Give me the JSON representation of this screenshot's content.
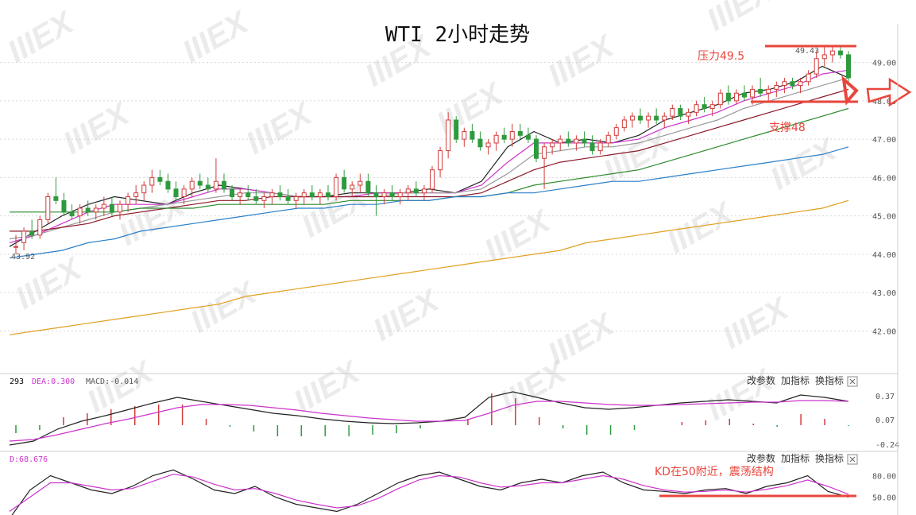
{
  "title": "WTI 2小时走势",
  "watermark": "IIIEX",
  "chart_data": {
    "type": "candlestick",
    "title": "WTI 2小时走势",
    "yticks": [
      "49.00",
      "48.00",
      "47.00",
      "46.00",
      "45.00",
      "44.00",
      "43.00",
      "42.00"
    ],
    "yrange": [
      41.2,
      49.8
    ],
    "low_marker": "43.92",
    "high_marker": "49.43",
    "candles": [
      [
        44.2,
        44.5,
        44.0,
        44.2
      ],
      [
        44.3,
        44.7,
        44.1,
        44.6
      ],
      [
        44.6,
        44.9,
        44.4,
        44.5
      ],
      [
        44.5,
        45.0,
        44.4,
        44.9
      ],
      [
        44.9,
        45.6,
        44.8,
        45.5
      ],
      [
        45.5,
        46.0,
        45.3,
        45.4
      ],
      [
        45.4,
        45.6,
        45.0,
        45.1
      ],
      [
        45.1,
        45.3,
        44.9,
        45.0
      ],
      [
        45.0,
        45.3,
        44.8,
        45.2
      ],
      [
        45.2,
        45.4,
        45.0,
        45.1
      ],
      [
        45.1,
        45.3,
        44.9,
        45.2
      ],
      [
        45.2,
        45.5,
        45.0,
        45.3
      ],
      [
        45.3,
        45.5,
        45.0,
        45.1
      ],
      [
        45.1,
        45.4,
        44.9,
        45.3
      ],
      [
        45.3,
        45.6,
        45.1,
        45.5
      ],
      [
        45.5,
        45.8,
        45.3,
        45.6
      ],
      [
        45.6,
        45.9,
        45.4,
        45.8
      ],
      [
        45.8,
        46.2,
        45.6,
        46.0
      ],
      [
        46.0,
        46.2,
        45.8,
        45.9
      ],
      [
        45.9,
        46.1,
        45.6,
        45.7
      ],
      [
        45.7,
        45.9,
        45.4,
        45.5
      ],
      [
        45.5,
        45.8,
        45.3,
        45.7
      ],
      [
        45.7,
        46.0,
        45.5,
        45.9
      ],
      [
        45.9,
        46.1,
        45.7,
        45.8
      ],
      [
        45.8,
        46.0,
        45.6,
        45.7
      ],
      [
        45.7,
        46.5,
        45.6,
        45.9
      ],
      [
        45.9,
        46.1,
        45.6,
        45.7
      ],
      [
        45.7,
        45.8,
        45.4,
        45.5
      ],
      [
        45.5,
        45.7,
        45.3,
        45.6
      ],
      [
        45.6,
        45.8,
        45.4,
        45.5
      ],
      [
        45.5,
        45.7,
        45.3,
        45.4
      ],
      [
        45.4,
        45.6,
        45.2,
        45.5
      ],
      [
        45.5,
        45.7,
        45.3,
        45.6
      ],
      [
        45.6,
        45.8,
        45.4,
        45.5
      ],
      [
        45.5,
        45.7,
        45.3,
        45.4
      ],
      [
        45.4,
        45.6,
        45.2,
        45.5
      ],
      [
        45.5,
        45.7,
        45.3,
        45.6
      ],
      [
        45.6,
        45.8,
        45.4,
        45.5
      ],
      [
        45.5,
        45.7,
        45.3,
        45.6
      ],
      [
        45.6,
        45.8,
        45.4,
        45.5
      ],
      [
        45.5,
        46.1,
        45.4,
        46.0
      ],
      [
        46.0,
        46.2,
        45.6,
        45.7
      ],
      [
        45.7,
        45.9,
        45.5,
        45.8
      ],
      [
        45.8,
        46.1,
        45.6,
        45.9
      ],
      [
        45.9,
        46.1,
        45.5,
        45.6
      ],
      [
        45.6,
        45.8,
        45.0,
        45.5
      ],
      [
        45.5,
        45.7,
        45.3,
        45.6
      ],
      [
        45.6,
        45.8,
        45.4,
        45.5
      ],
      [
        45.5,
        45.7,
        45.3,
        45.6
      ],
      [
        45.6,
        45.8,
        45.4,
        45.7
      ],
      [
        45.7,
        45.9,
        45.5,
        45.6
      ],
      [
        45.6,
        45.8,
        45.4,
        45.7
      ],
      [
        45.7,
        46.3,
        45.6,
        46.2
      ],
      [
        46.2,
        46.8,
        46.0,
        46.7
      ],
      [
        46.7,
        47.7,
        46.5,
        47.5
      ],
      [
        47.5,
        47.6,
        46.9,
        47.0
      ],
      [
        47.0,
        47.3,
        46.8,
        47.2
      ],
      [
        47.2,
        47.4,
        46.9,
        47.0
      ],
      [
        47.0,
        47.2,
        46.7,
        46.8
      ],
      [
        46.8,
        47.0,
        46.6,
        46.9
      ],
      [
        46.9,
        47.2,
        46.7,
        47.1
      ],
      [
        47.1,
        47.3,
        46.9,
        47.0
      ],
      [
        47.0,
        47.4,
        46.8,
        47.2
      ],
      [
        47.2,
        47.4,
        47.0,
        47.1
      ],
      [
        47.1,
        47.3,
        46.9,
        47.0
      ],
      [
        47.0,
        47.1,
        46.4,
        46.5
      ],
      [
        46.5,
        46.9,
        45.7,
        46.8
      ],
      [
        46.8,
        47.0,
        46.6,
        46.9
      ],
      [
        46.9,
        47.1,
        46.7,
        47.0
      ],
      [
        47.0,
        47.2,
        46.8,
        46.9
      ],
      [
        46.9,
        47.1,
        46.7,
        47.0
      ],
      [
        47.0,
        47.2,
        46.8,
        46.9
      ],
      [
        46.9,
        47.1,
        46.6,
        46.7
      ],
      [
        46.7,
        47.0,
        46.6,
        46.9
      ],
      [
        46.9,
        47.2,
        46.8,
        47.1
      ],
      [
        47.1,
        47.4,
        47.0,
        47.3
      ],
      [
        47.3,
        47.6,
        47.2,
        47.5
      ],
      [
        47.5,
        47.7,
        47.3,
        47.6
      ],
      [
        47.6,
        47.8,
        47.4,
        47.5
      ],
      [
        47.5,
        47.7,
        47.3,
        47.6
      ],
      [
        47.6,
        47.8,
        47.4,
        47.5
      ],
      [
        47.5,
        47.7,
        47.3,
        47.6
      ],
      [
        47.6,
        47.9,
        47.5,
        47.8
      ],
      [
        47.8,
        47.9,
        47.5,
        47.6
      ],
      [
        47.6,
        47.8,
        47.4,
        47.7
      ],
      [
        47.7,
        48.0,
        47.6,
        47.9
      ],
      [
        47.9,
        48.1,
        47.7,
        47.8
      ],
      [
        47.8,
        48.0,
        47.6,
        47.9
      ],
      [
        47.9,
        48.3,
        47.8,
        48.2
      ],
      [
        48.2,
        48.4,
        47.9,
        48.0
      ],
      [
        48.0,
        48.3,
        47.9,
        48.2
      ],
      [
        48.2,
        48.4,
        48.0,
        48.1
      ],
      [
        48.1,
        48.4,
        47.9,
        48.3
      ],
      [
        48.3,
        48.6,
        48.1,
        48.2
      ],
      [
        48.2,
        48.4,
        48.0,
        48.3
      ],
      [
        48.3,
        48.5,
        48.1,
        48.4
      ],
      [
        48.4,
        48.6,
        48.2,
        48.5
      ],
      [
        48.5,
        48.6,
        48.3,
        48.4
      ],
      [
        48.4,
        48.6,
        48.2,
        48.5
      ],
      [
        48.5,
        48.8,
        48.4,
        48.7
      ],
      [
        48.7,
        49.3,
        48.6,
        49.1
      ],
      [
        49.1,
        49.4,
        48.9,
        49.2
      ],
      [
        49.2,
        49.4,
        49.0,
        49.3
      ],
      [
        49.3,
        49.4,
        49.1,
        49.2
      ],
      [
        49.2,
        49.3,
        48.5,
        48.6
      ]
    ],
    "moving_averages": [
      {
        "color": "#222222",
        "values": [
          44.2,
          44.6,
          45.0,
          45.3,
          45.5,
          45.4,
          45.3,
          45.6,
          45.8,
          45.7,
          45.6,
          45.5,
          45.5,
          45.6,
          45.6,
          45.6,
          45.7,
          45.6,
          45.9,
          46.8,
          47.2,
          46.9,
          47.0,
          46.9,
          47.1,
          47.5,
          47.7,
          47.9,
          48.2,
          48.3,
          48.5,
          48.9,
          48.6
        ]
      },
      {
        "color": "#cc33cc",
        "values": [
          44.3,
          44.5,
          44.8,
          45.1,
          45.3,
          45.3,
          45.3,
          45.5,
          45.7,
          45.7,
          45.6,
          45.5,
          45.5,
          45.5,
          45.6,
          45.6,
          45.6,
          45.6,
          45.8,
          46.4,
          46.9,
          46.9,
          46.9,
          46.9,
          47.0,
          47.3,
          47.5,
          47.7,
          48.0,
          48.2,
          48.4,
          48.7,
          48.8
        ]
      },
      {
        "color": "#999999",
        "values": [
          44.4,
          44.5,
          44.7,
          44.9,
          45.1,
          45.2,
          45.3,
          45.4,
          45.5,
          45.6,
          45.6,
          45.5,
          45.5,
          45.5,
          45.5,
          45.6,
          45.6,
          45.6,
          45.7,
          46.1,
          46.6,
          46.7,
          46.8,
          46.8,
          46.9,
          47.1,
          47.3,
          47.5,
          47.8,
          48.0,
          48.2,
          48.4,
          48.6
        ]
      },
      {
        "color": "#8b1a2a",
        "values": [
          44.6,
          44.6,
          44.7,
          44.8,
          45.0,
          45.1,
          45.2,
          45.3,
          45.4,
          45.4,
          45.5,
          45.5,
          45.5,
          45.5,
          45.5,
          45.5,
          45.5,
          45.5,
          45.6,
          45.9,
          46.2,
          46.4,
          46.5,
          46.6,
          46.7,
          46.9,
          47.1,
          47.3,
          47.5,
          47.7,
          47.9,
          48.1,
          48.3
        ]
      },
      {
        "color": "#2e8b2e",
        "values": [
          45.1,
          45.1,
          45.1,
          45.1,
          45.1,
          45.2,
          45.2,
          45.2,
          45.3,
          45.3,
          45.3,
          45.3,
          45.3,
          45.4,
          45.4,
          45.4,
          45.4,
          45.5,
          45.5,
          45.6,
          45.8,
          45.9,
          46.0,
          46.1,
          46.2,
          46.4,
          46.6,
          46.8,
          47.0,
          47.2,
          47.4,
          47.6,
          47.8
        ]
      },
      {
        "color": "#2a7fc8",
        "values": [
          43.9,
          44.0,
          44.1,
          44.3,
          44.4,
          44.6,
          44.7,
          44.8,
          44.9,
          45.0,
          45.1,
          45.2,
          45.2,
          45.3,
          45.3,
          45.4,
          45.4,
          45.5,
          45.5,
          45.6,
          45.6,
          45.7,
          45.8,
          45.9,
          45.9,
          46.0,
          46.1,
          46.2,
          46.3,
          46.4,
          46.5,
          46.6,
          46.8
        ]
      },
      {
        "color": "#e0a020",
        "values": [
          41.9,
          42.0,
          42.1,
          42.2,
          42.3,
          42.4,
          42.5,
          42.6,
          42.7,
          42.9,
          43.0,
          43.1,
          43.2,
          43.3,
          43.4,
          43.5,
          43.6,
          43.7,
          43.8,
          43.9,
          44.0,
          44.1,
          44.3,
          44.4,
          44.5,
          44.6,
          44.7,
          44.8,
          44.9,
          45.0,
          45.1,
          45.2,
          45.4
        ]
      }
    ],
    "annotations": {
      "resistance": "压力49.5",
      "support": "支撑48",
      "kd_note": "KD在50附近，震荡结构"
    },
    "macd": {
      "label_dif": "293",
      "label_dea": "DEA:0.300",
      "label_macd": "MACD:-0.014",
      "yticks": [
        "0.37",
        "0.07",
        "-0.24"
      ],
      "yrange": [
        -0.3,
        0.45
      ],
      "dif": [
        -0.25,
        -0.2,
        -0.05,
        0.05,
        0.12,
        0.2,
        0.28,
        0.35,
        0.3,
        0.25,
        0.2,
        0.15,
        0.12,
        0.08,
        0.05,
        0.03,
        0.02,
        0.03,
        0.05,
        0.1,
        0.35,
        0.42,
        0.35,
        0.28,
        0.22,
        0.2,
        0.22,
        0.25,
        0.28,
        0.3,
        0.32,
        0.3,
        0.28,
        0.38,
        0.35,
        0.3
      ],
      "dea": [
        -0.2,
        -0.18,
        -0.12,
        -0.05,
        0.02,
        0.08,
        0.15,
        0.22,
        0.26,
        0.26,
        0.25,
        0.22,
        0.19,
        0.15,
        0.12,
        0.09,
        0.07,
        0.05,
        0.05,
        0.06,
        0.15,
        0.25,
        0.3,
        0.3,
        0.28,
        0.26,
        0.25,
        0.25,
        0.26,
        0.27,
        0.28,
        0.29,
        0.29,
        0.31,
        0.31,
        0.3
      ],
      "hist": [
        -0.1,
        -0.06,
        0.1,
        0.15,
        0.2,
        0.24,
        0.26,
        0.26,
        0.08,
        -0.02,
        -0.08,
        -0.14,
        -0.14,
        -0.14,
        -0.14,
        -0.12,
        -0.1,
        -0.04,
        0.0,
        0.08,
        0.4,
        0.34,
        0.1,
        -0.04,
        -0.12,
        -0.12,
        -0.06,
        0.0,
        0.04,
        0.06,
        0.08,
        0.02,
        -0.02,
        0.14,
        0.08,
        -0.01
      ]
    },
    "kd": {
      "label": "D:68.676",
      "yticks": [
        "80.00",
        "50.00"
      ],
      "yrange": [
        25,
        95
      ],
      "k": [
        20,
        60,
        80,
        70,
        60,
        55,
        65,
        80,
        88,
        75,
        60,
        55,
        65,
        50,
        40,
        35,
        30,
        40,
        55,
        70,
        80,
        85,
        75,
        65,
        60,
        70,
        75,
        70,
        80,
        85,
        70,
        60,
        58,
        55,
        60,
        62,
        55,
        65,
        70,
        80,
        58,
        50
      ],
      "d": [
        30,
        50,
        70,
        70,
        65,
        60,
        62,
        72,
        82,
        78,
        68,
        60,
        62,
        55,
        46,
        40,
        35,
        38,
        48,
        62,
        74,
        80,
        78,
        70,
        64,
        66,
        70,
        70,
        75,
        80,
        75,
        66,
        60,
        57,
        58,
        60,
        57,
        61,
        66,
        74,
        65,
        54
      ]
    },
    "buttons": [
      "改参数",
      "加指标",
      "换指标"
    ]
  }
}
